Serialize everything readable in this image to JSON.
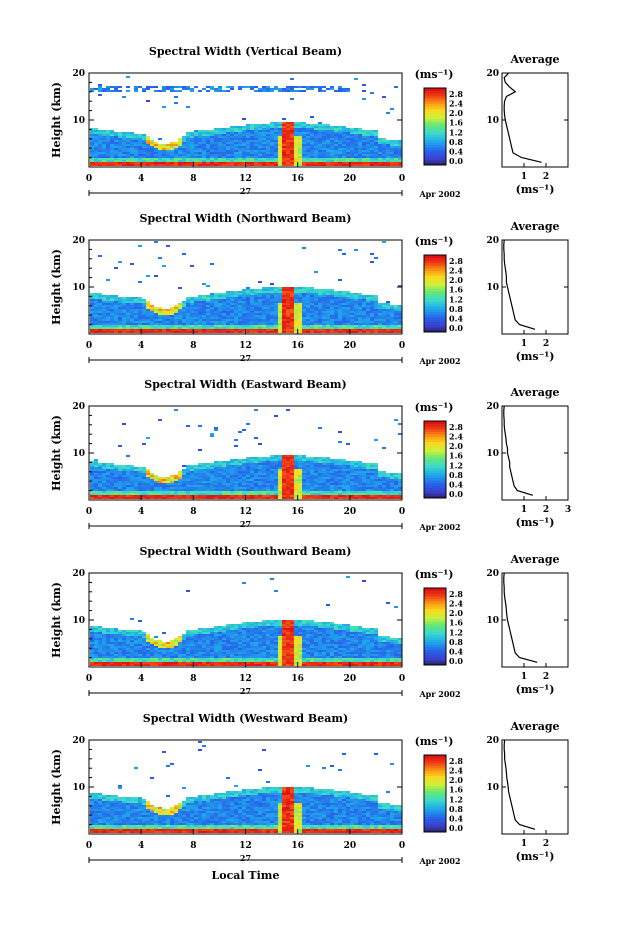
{
  "figure": {
    "xlabel": "Local Time",
    "date_label": "27",
    "month_label": "Apr 2002",
    "ylabel": "Height (km)",
    "units_label": "(ms⁻¹)",
    "avg_xlabel": "(ms⁻¹)",
    "avg_title": "Average"
  },
  "chart_data": [
    {
      "type": "heatmap",
      "title": "Spectral Width (Vertical Beam)",
      "xlabel": "Local Time",
      "ylabel": "Height (km)",
      "x_ticks": [
        "0",
        "4",
        "8",
        "12",
        "16",
        "20",
        "0"
      ],
      "y_ticks": [
        "10",
        "20"
      ],
      "xlim": [
        0,
        24
      ],
      "ylim": [
        0,
        20
      ],
      "colorbar": {
        "ticks": [
          "0.0",
          "0.4",
          "0.8",
          "1.2",
          "1.6",
          "2.0",
          "2.4",
          "2.8"
        ],
        "range": [
          0,
          2.8
        ]
      },
      "features": {
        "cloud_top_km": 8.5,
        "upper_layer_km": [
          16,
          17.5
        ],
        "spike_hour": 15.2
      },
      "average": {
        "x_ticks": [
          "1",
          "2"
        ],
        "xlim": [
          0,
          3
        ],
        "profile": [
          [
            1.8,
            1
          ],
          [
            0.9,
            2
          ],
          [
            0.5,
            3
          ],
          [
            0.45,
            4
          ],
          [
            0.4,
            5
          ],
          [
            0.35,
            6
          ],
          [
            0.3,
            7
          ],
          [
            0.25,
            8
          ],
          [
            0.2,
            9
          ],
          [
            0.15,
            10
          ],
          [
            0.12,
            11
          ],
          [
            0.1,
            12
          ],
          [
            0.1,
            13
          ],
          [
            0.12,
            14
          ],
          [
            0.2,
            15
          ],
          [
            0.6,
            16
          ],
          [
            0.35,
            17
          ],
          [
            0.15,
            18
          ],
          [
            0.1,
            19
          ],
          [
            0.3,
            20
          ]
        ]
      }
    },
    {
      "type": "heatmap",
      "title": "Spectral Width (Northward Beam)",
      "xlabel": "Local Time",
      "ylabel": "Height (km)",
      "x_ticks": [
        "0",
        "4",
        "8",
        "12",
        "16",
        "20",
        "0"
      ],
      "y_ticks": [
        "10",
        "20"
      ],
      "xlim": [
        0,
        24
      ],
      "ylim": [
        0,
        20
      ],
      "colorbar": {
        "ticks": [
          "0.0",
          "0.4",
          "0.8",
          "1.2",
          "1.6",
          "2.0",
          "2.4",
          "2.8"
        ],
        "range": [
          0,
          2.8
        ]
      },
      "features": {
        "cloud_top_km": 9,
        "upper_layer_km": null,
        "spike_hour": 15.2
      },
      "average": {
        "x_ticks": [
          "1",
          "2"
        ],
        "xlim": [
          0,
          3
        ],
        "profile": [
          [
            1.5,
            1
          ],
          [
            0.8,
            2
          ],
          [
            0.6,
            3
          ],
          [
            0.55,
            4
          ],
          [
            0.5,
            5
          ],
          [
            0.45,
            6
          ],
          [
            0.4,
            7
          ],
          [
            0.35,
            8
          ],
          [
            0.3,
            9
          ],
          [
            0.25,
            10
          ],
          [
            0.2,
            11
          ],
          [
            0.2,
            12
          ],
          [
            0.18,
            13
          ],
          [
            0.15,
            14
          ],
          [
            0.12,
            15
          ],
          [
            0.1,
            16
          ],
          [
            0.1,
            17
          ],
          [
            0.08,
            18
          ],
          [
            0.08,
            19
          ],
          [
            0.1,
            20
          ]
        ]
      }
    },
    {
      "type": "heatmap",
      "title": "Spectral Width (Eastward Beam)",
      "xlabel": "Local Time",
      "ylabel": "Height (km)",
      "x_ticks": [
        "0",
        "4",
        "8",
        "12",
        "16",
        "20",
        "0"
      ],
      "y_ticks": [
        "10",
        "20"
      ],
      "xlim": [
        0,
        24
      ],
      "ylim": [
        0,
        20
      ],
      "colorbar": {
        "ticks": [
          "0.0",
          "0.4",
          "0.8",
          "1.2",
          "1.6",
          "2.0",
          "2.4",
          "2.8"
        ],
        "range": [
          0,
          2.8
        ]
      },
      "features": {
        "cloud_top_km": 8.5,
        "upper_layer_km": null,
        "spike_hour": 15.2
      },
      "average": {
        "x_ticks": [
          "1",
          "2",
          "3"
        ],
        "xlim": [
          0,
          3
        ],
        "profile": [
          [
            1.4,
            1
          ],
          [
            0.7,
            2
          ],
          [
            0.55,
            3
          ],
          [
            0.5,
            4
          ],
          [
            0.45,
            5
          ],
          [
            0.4,
            6
          ],
          [
            0.35,
            7
          ],
          [
            0.35,
            8
          ],
          [
            0.3,
            9
          ],
          [
            0.25,
            10
          ],
          [
            0.25,
            11
          ],
          [
            0.2,
            12
          ],
          [
            0.18,
            13
          ],
          [
            0.15,
            14
          ],
          [
            0.12,
            15
          ],
          [
            0.1,
            16
          ],
          [
            0.1,
            17
          ],
          [
            0.08,
            18
          ],
          [
            0.08,
            19
          ],
          [
            0.1,
            20
          ]
        ]
      }
    },
    {
      "type": "heatmap",
      "title": "Spectral Width (Southward Beam)",
      "xlabel": "Local Time",
      "ylabel": "Height (km)",
      "x_ticks": [
        "0",
        "4",
        "8",
        "12",
        "16",
        "20",
        "0"
      ],
      "y_ticks": [
        "10",
        "20"
      ],
      "xlim": [
        0,
        24
      ],
      "ylim": [
        0,
        20
      ],
      "colorbar": {
        "ticks": [
          "0.0",
          "0.4",
          "0.8",
          "1.2",
          "1.6",
          "2.0",
          "2.4",
          "2.8"
        ],
        "range": [
          0,
          2.8
        ]
      },
      "features": {
        "cloud_top_km": 9,
        "upper_layer_km": null,
        "spike_hour": 15.2
      },
      "average": {
        "x_ticks": [
          "1",
          "2"
        ],
        "xlim": [
          0,
          3
        ],
        "profile": [
          [
            1.6,
            1
          ],
          [
            0.8,
            2
          ],
          [
            0.6,
            3
          ],
          [
            0.55,
            4
          ],
          [
            0.5,
            5
          ],
          [
            0.45,
            6
          ],
          [
            0.4,
            7
          ],
          [
            0.35,
            8
          ],
          [
            0.3,
            9
          ],
          [
            0.25,
            10
          ],
          [
            0.22,
            11
          ],
          [
            0.2,
            12
          ],
          [
            0.18,
            13
          ],
          [
            0.15,
            14
          ],
          [
            0.12,
            15
          ],
          [
            0.1,
            16
          ],
          [
            0.1,
            17
          ],
          [
            0.08,
            18
          ],
          [
            0.08,
            19
          ],
          [
            0.1,
            20
          ]
        ]
      }
    },
    {
      "type": "heatmap",
      "title": "Spectral Width (Westward Beam)",
      "xlabel": "Local Time",
      "ylabel": "Height (km)",
      "x_ticks": [
        "0",
        "4",
        "8",
        "12",
        "16",
        "20",
        "0"
      ],
      "y_ticks": [
        "10",
        "20"
      ],
      "xlim": [
        0,
        24
      ],
      "ylim": [
        0,
        20
      ],
      "colorbar": {
        "ticks": [
          "0.0",
          "0.4",
          "0.8",
          "1.2",
          "1.6",
          "2.0",
          "2.4",
          "2.8"
        ],
        "range": [
          0,
          2.8
        ]
      },
      "features": {
        "cloud_top_km": 9,
        "upper_layer_km": null,
        "spike_hour": 15.2
      },
      "average": {
        "x_ticks": [
          "1",
          "2"
        ],
        "xlim": [
          0,
          3
        ],
        "profile": [
          [
            1.5,
            1
          ],
          [
            0.8,
            2
          ],
          [
            0.6,
            3
          ],
          [
            0.55,
            4
          ],
          [
            0.5,
            5
          ],
          [
            0.45,
            6
          ],
          [
            0.4,
            7
          ],
          [
            0.35,
            8
          ],
          [
            0.3,
            9
          ],
          [
            0.28,
            10
          ],
          [
            0.25,
            11
          ],
          [
            0.22,
            12
          ],
          [
            0.2,
            13
          ],
          [
            0.18,
            14
          ],
          [
            0.15,
            15
          ],
          [
            0.12,
            16
          ],
          [
            0.12,
            17
          ],
          [
            0.1,
            18
          ],
          [
            0.1,
            19
          ],
          [
            0.12,
            20
          ]
        ]
      }
    }
  ]
}
